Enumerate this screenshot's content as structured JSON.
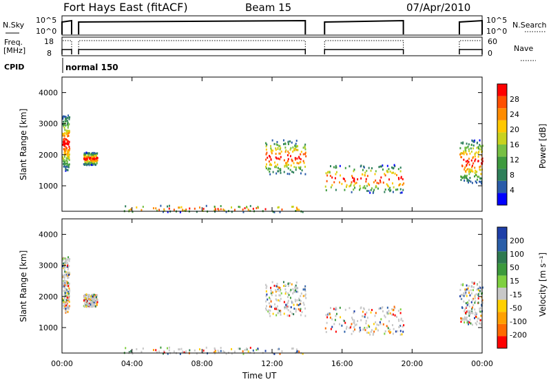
{
  "chart_data": {
    "type": "heatmap",
    "header": {
      "title": "Fort Hays East (fitACF)",
      "beam": "Beam 15",
      "date": "07/Apr/2010"
    },
    "strip": {
      "left_label": "N.Sky",
      "right_label": "N.Search",
      "y_ticks_left": [
        "10^5",
        "10^0"
      ],
      "y_ticks_right": [
        "10^5",
        "10^0"
      ]
    },
    "freq_strip": {
      "left_label_1": "Freq.",
      "left_label_2": "[MHz]",
      "right_label": "Nave",
      "left_ticks": [
        "18",
        "8"
      ],
      "right_ticks": [
        "60",
        "0"
      ]
    },
    "cpid": {
      "label": "CPID",
      "value": "normal 150"
    },
    "data_gaps_hours": [
      [
        0.55,
        0.95
      ],
      [
        13.9,
        15.0
      ],
      [
        19.5,
        22.7
      ]
    ],
    "x_axis": {
      "label": "Time UT",
      "ticks": [
        "00:00",
        "04:00",
        "08:00",
        "12:00",
        "16:00",
        "20:00",
        "00:00"
      ],
      "range_hours": [
        0,
        24
      ]
    },
    "power_panel": {
      "ylabel": "Slant Range [km]",
      "y_ticks": [
        "1000",
        "2000",
        "3000",
        "4000"
      ],
      "y_range_km": [
        180,
        4500
      ],
      "colorbar_label": "Power [dB]",
      "colorbar_ticks": [
        "4",
        "8",
        "12",
        "16",
        "20",
        "24",
        "28"
      ],
      "colorbar_colors": [
        "#0000ff",
        "#2a5caa",
        "#2e7f5a",
        "#3e9a3e",
        "#77c043",
        "#c8d21e",
        "#ffc800",
        "#ff8c00",
        "#ff5000",
        "#ff0000"
      ]
    },
    "velocity_panel": {
      "ylabel": "Slant Range [km]",
      "y_ticks": [
        "1000",
        "2000",
        "3000",
        "4000"
      ],
      "y_range_km": [
        180,
        4500
      ],
      "colorbar_label": "Velocity [m s⁻¹]",
      "colorbar_ticks": [
        "200",
        "100",
        "50",
        "15",
        "-15",
        "-50",
        "-100",
        "-200"
      ],
      "colorbar_colors": [
        "#1e3fa8",
        "#2a5ea8",
        "#2e7a50",
        "#3c9a3c",
        "#7fd040",
        "#c8c8c8",
        "#ffd000",
        "#ffa000",
        "#ff6a00",
        "#ff0000"
      ]
    },
    "echo_regions": [
      {
        "t0": 0.0,
        "t1": 0.4,
        "r0": 1500,
        "r1": 3300
      },
      {
        "t0": 1.2,
        "t1": 2.0,
        "r0": 1700,
        "r1": 2100
      },
      {
        "t0": 11.6,
        "t1": 13.9,
        "r0": 1400,
        "r1": 2500
      },
      {
        "t0": 15.0,
        "t1": 19.5,
        "r0": 800,
        "r1": 1700
      },
      {
        "t0": 22.7,
        "t1": 24.0,
        "r0": 1100,
        "r1": 2500
      },
      {
        "t0": 3.5,
        "t1": 13.9,
        "r0": 180,
        "r1": 400
      }
    ]
  }
}
